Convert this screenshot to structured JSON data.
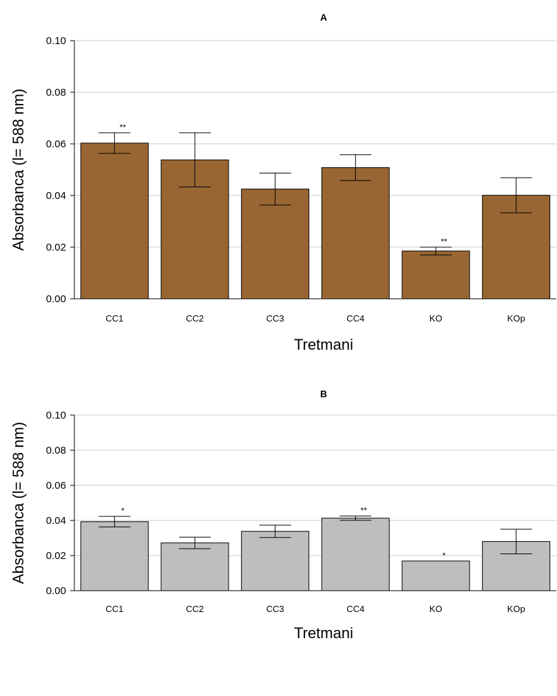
{
  "chart_data": [
    {
      "type": "bar",
      "title": "A",
      "xlabel": "Tretmani",
      "ylabel": "Absorbanca (l= 588 nm)",
      "ylim": [
        0,
        0.1
      ],
      "yticks": [
        "0.00",
        "0.02",
        "0.04",
        "0.06",
        "0.08",
        "0.10"
      ],
      "ytick_values": [
        0,
        0.02,
        0.04,
        0.06,
        0.08,
        0.1
      ],
      "grid": true,
      "bar_color": "#996633",
      "categories": [
        "CC1",
        "CC2",
        "CC3",
        "CC4",
        "KO",
        "KOp"
      ],
      "values": [
        0.0603,
        0.0538,
        0.0425,
        0.0508,
        0.0185,
        0.0401
      ],
      "errors": [
        0.004,
        0.0105,
        0.0062,
        0.005,
        0.0015,
        0.0068
      ],
      "significance": [
        "**",
        "",
        "",
        "",
        "**",
        ""
      ]
    },
    {
      "type": "bar",
      "title": "B",
      "xlabel": "Tretmani",
      "ylabel": "Absorbanca (l= 588 nm)",
      "ylim": [
        0,
        0.1
      ],
      "yticks": [
        "0.00",
        "0.02",
        "0.04",
        "0.06",
        "0.08",
        "0.10"
      ],
      "ytick_values": [
        0,
        0.02,
        0.04,
        0.06,
        0.08,
        0.1
      ],
      "grid": true,
      "bar_color": "#bebebe",
      "categories": [
        "CC1",
        "CC2",
        "CC3",
        "CC4",
        "KO",
        "KOp"
      ],
      "values": [
        0.0393,
        0.0272,
        0.0338,
        0.0413,
        0.0169,
        0.028
      ],
      "errors": [
        0.003,
        0.0033,
        0.0035,
        0.0012,
        0.0,
        0.007
      ],
      "significance": [
        "*",
        "",
        "",
        "**",
        "*",
        ""
      ]
    }
  ]
}
